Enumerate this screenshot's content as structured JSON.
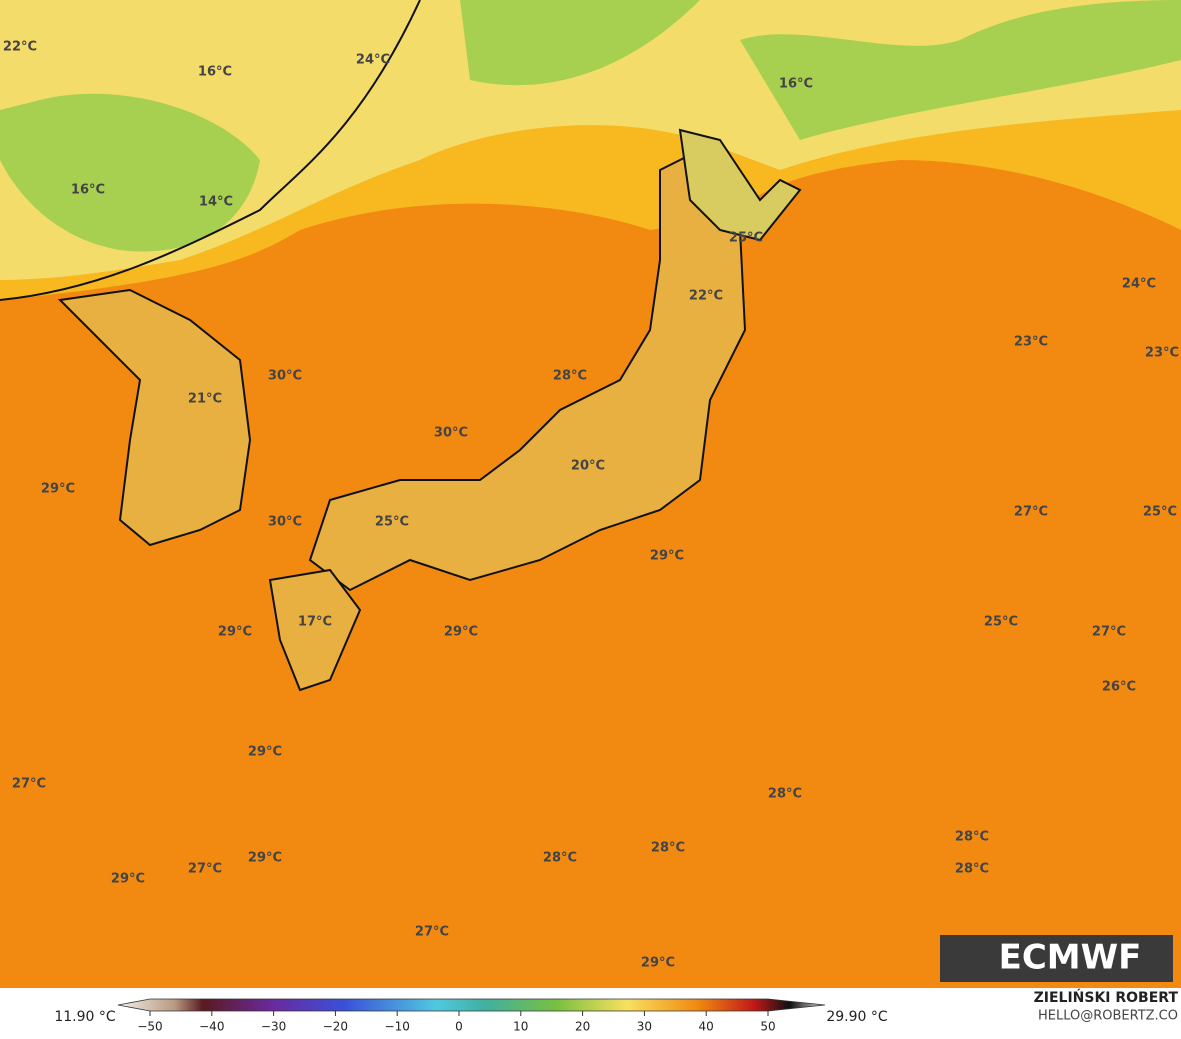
{
  "map": {
    "labels": [
      "22°C",
      "16°C",
      "24°C",
      "16°C",
      "16°C",
      "14°C",
      "25°C",
      "22°C",
      "24°C",
      "23°C",
      "23°C",
      "30°C",
      "28°C",
      "21°C",
      "30°C",
      "20°C",
      "29°C",
      "27°C",
      "25°C",
      "30°C",
      "25°C",
      "29°C",
      "25°C",
      "27°C",
      "29°C",
      "17°C",
      "29°C",
      "26°C",
      "29°C",
      "27°C",
      "28°C",
      "28°C",
      "28°C",
      "28°C",
      "29°C",
      "27°C",
      "29°C",
      "28°C",
      "27°C",
      "29°C"
    ],
    "logo": "ECMWF"
  },
  "colorbar": {
    "min_label": "11.90 °C",
    "max_label": "29.90 °C",
    "ticks": [
      {
        "value": -50,
        "label": "−50"
      },
      {
        "value": -40,
        "label": "−40"
      },
      {
        "value": -30,
        "label": "−30"
      },
      {
        "value": -20,
        "label": "−20"
      },
      {
        "value": -10,
        "label": "−10"
      },
      0,
      10,
      20,
      30,
      40,
      50
    ]
  },
  "credits": {
    "author": "ZIELIŃSKI ROBERT",
    "contact": "HELLO@ROBERTZ.CO"
  }
}
